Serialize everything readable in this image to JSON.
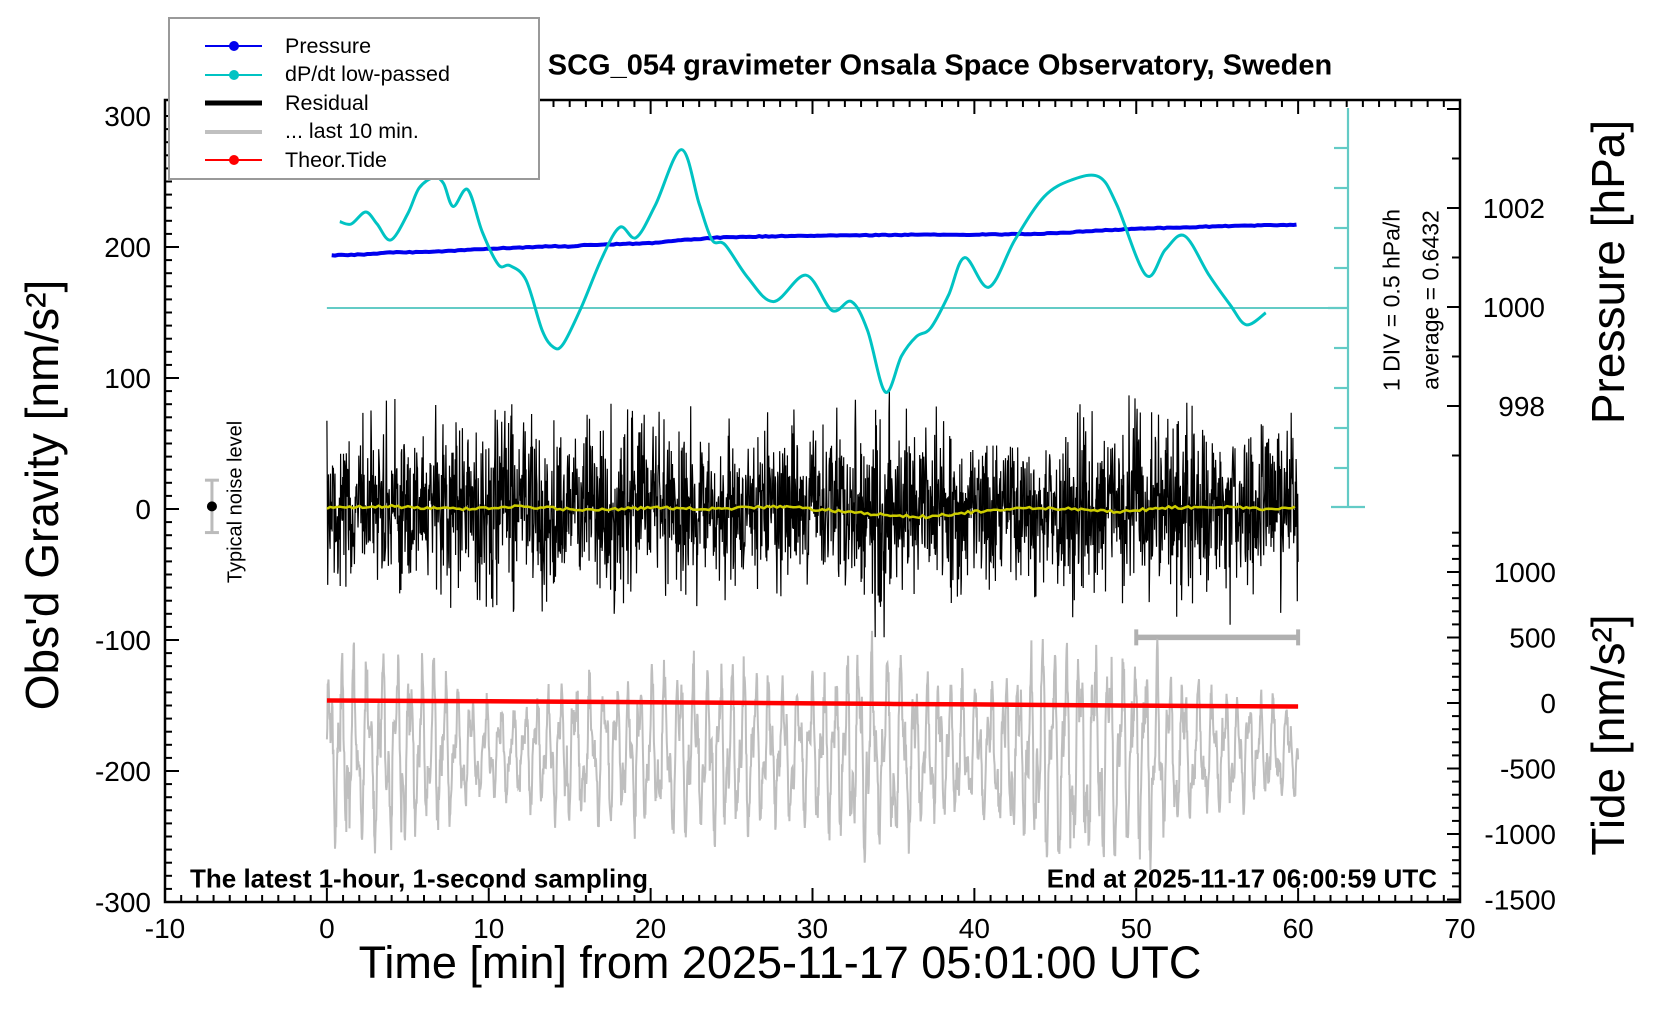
{
  "header": {
    "title": "SCG_054 gravimeter Onsala Space Observatory, Sweden"
  },
  "axes": {
    "x": {
      "label": "Time [min] from 2025-11-17 05:01:00 UTC",
      "min": -10,
      "max": 70,
      "major_ticks": [
        -10,
        0,
        10,
        20,
        30,
        40,
        50,
        60,
        70
      ],
      "minor_step": 1
    },
    "gravity": {
      "label": "Obs'd Gravity [nm/s²]",
      "major_ticks": [
        300,
        200,
        100,
        0,
        -100,
        -200,
        -300
      ],
      "minor_step": 10
    },
    "pressure": {
      "label": "Pressure [hPa]",
      "labeled_ticks": [
        1002,
        1000,
        998
      ],
      "minor_step": 1,
      "minor_range": [
        997,
        1004
      ]
    },
    "tide": {
      "label": "Tide [nm/s²]",
      "labeled_ticks": [
        1000,
        500,
        0,
        -500,
        -1000,
        -1500
      ],
      "minor_step": 100,
      "minor_range": [
        -1500,
        1300
      ]
    }
  },
  "annotations": {
    "scalebar_div": "1 DIV = 0.5 hPa/h",
    "scalebar_avg": "average = 0.6432",
    "noise_label": "Typical noise level",
    "bottom_left": "The latest 1-hour, 1-second sampling",
    "bottom_right": "End at 2025-11-17 06:00:59 UTC"
  },
  "legend": {
    "items": [
      {
        "label": "Pressure",
        "color": "#0000EE",
        "line_width": 2,
        "dot": true
      },
      {
        "label": "dP/dt low-passed",
        "color": "#00C3C3",
        "line_width": 2,
        "dot": true
      },
      {
        "label": "Residual",
        "color": "#000000",
        "line_width": 5,
        "dot": false
      },
      {
        "label": "... last 10 min.",
        "color": "#C0C0C0",
        "line_width": 4,
        "dot": false
      },
      {
        "label": "Theor.Tide",
        "color": "#FF0000",
        "line_width": 2,
        "dot": true
      }
    ]
  },
  "colors": {
    "pressure": "#0000EE",
    "dpdt": "#00C3C3",
    "dpdt_guides": "#63CBC6",
    "residual": "#000000",
    "residual_lp": "#CCCC00",
    "last10": "#BEBEBE",
    "bracket": "#B0B0B0",
    "tide": "#FF0000",
    "noise_bar": "#BBBBBB"
  },
  "chart_data": {
    "type": "line",
    "x_unit": "min",
    "title": "SCG_054 gravimeter Onsala Space Observatory, Sweden",
    "series": [
      {
        "name": "Pressure",
        "axis": "pressure",
        "unit": "hPa",
        "color": "#0000EE",
        "points": [
          [
            0,
            1001.04
          ],
          [
            2,
            1001.06
          ],
          [
            4,
            1001.1
          ],
          [
            6,
            1001.11
          ],
          [
            8,
            1001.14
          ],
          [
            10,
            1001.18
          ],
          [
            12,
            1001.2
          ],
          [
            14,
            1001.23
          ],
          [
            15,
            1001.22
          ],
          [
            16,
            1001.25
          ],
          [
            18,
            1001.27
          ],
          [
            20,
            1001.29
          ],
          [
            22,
            1001.35
          ],
          [
            24,
            1001.4
          ],
          [
            26,
            1001.42
          ],
          [
            28,
            1001.43
          ],
          [
            30,
            1001.44
          ],
          [
            32,
            1001.45
          ],
          [
            34,
            1001.45
          ],
          [
            36,
            1001.46
          ],
          [
            38,
            1001.46
          ],
          [
            40,
            1001.46
          ],
          [
            42,
            1001.47
          ],
          [
            44,
            1001.48
          ],
          [
            46,
            1001.51
          ],
          [
            48,
            1001.55
          ],
          [
            50,
            1001.58
          ],
          [
            52,
            1001.6
          ],
          [
            54,
            1001.62
          ],
          [
            56,
            1001.64
          ],
          [
            58,
            1001.65
          ],
          [
            60,
            1001.66
          ]
        ]
      },
      {
        "name": "dP/dt low-passed",
        "axis": "dpdt",
        "unit": "hPa/h",
        "color": "#00C3C3",
        "points": [
          [
            0.8,
            1.08
          ],
          [
            1.5,
            1.05
          ],
          [
            2.4,
            1.2
          ],
          [
            3.1,
            1.05
          ],
          [
            3.95,
            0.85
          ],
          [
            5.0,
            1.18
          ],
          [
            5.7,
            1.5
          ],
          [
            6.6,
            1.63
          ],
          [
            7.2,
            1.56
          ],
          [
            7.8,
            1.27
          ],
          [
            8.7,
            1.48
          ],
          [
            9.6,
            0.95
          ],
          [
            10.6,
            0.54
          ],
          [
            11.3,
            0.53
          ],
          [
            12.3,
            0.35
          ],
          [
            13.3,
            -0.28
          ],
          [
            14.0,
            -0.49
          ],
          [
            14.6,
            -0.45
          ],
          [
            15.7,
            0.0
          ],
          [
            17.0,
            0.63
          ],
          [
            18.1,
            1.01
          ],
          [
            19.1,
            0.88
          ],
          [
            20.3,
            1.29
          ],
          [
            21.9,
            1.98
          ],
          [
            23.0,
            1.3
          ],
          [
            23.8,
            0.85
          ],
          [
            24.6,
            0.79
          ],
          [
            26.0,
            0.38
          ],
          [
            27.6,
            0.08
          ],
          [
            29.6,
            0.41
          ],
          [
            31.2,
            -0.03
          ],
          [
            32.4,
            0.08
          ],
          [
            33.4,
            -0.28
          ],
          [
            34.5,
            -1.05
          ],
          [
            35.5,
            -0.6
          ],
          [
            36.4,
            -0.36
          ],
          [
            37.3,
            -0.25
          ],
          [
            38.4,
            0.16
          ],
          [
            39.4,
            0.63
          ],
          [
            40.9,
            0.26
          ],
          [
            42.5,
            0.85
          ],
          [
            44.3,
            1.39
          ],
          [
            46.0,
            1.6
          ],
          [
            47.7,
            1.64
          ],
          [
            48.8,
            1.29
          ],
          [
            50.6,
            0.41
          ],
          [
            51.8,
            0.73
          ],
          [
            53.0,
            0.9
          ],
          [
            54.5,
            0.41
          ],
          [
            55.8,
            0.04
          ],
          [
            56.8,
            -0.21
          ],
          [
            58.0,
            -0.06
          ]
        ]
      },
      {
        "name": "Residual",
        "axis": "gravity",
        "unit": "nm/s2",
        "color": "#000000",
        "mean": 0,
        "sampling": "1 s",
        "envelope_per_min": [
          70,
          75,
          72,
          78,
          85,
          80,
          72,
          85,
          80,
          76,
          84,
          90,
          75,
          95,
          86,
          72,
          80,
          90,
          84,
          75,
          70,
          78,
          86,
          72,
          66,
          72,
          82,
          75,
          70,
          77,
          72,
          80,
          86,
          82,
          100,
          95,
          84,
          75,
          80,
          84,
          77,
          72,
          82,
          75,
          70,
          77,
          84,
          80,
          75,
          90,
          84,
          80,
          86,
          82,
          75,
          80,
          92,
          88,
          95,
          78,
          70
        ]
      },
      {
        "name": "Residual low-passed",
        "axis": "gravity",
        "unit": "nm/s2",
        "color": "#CCCC00",
        "points": [
          [
            0,
            1
          ],
          [
            4,
            2
          ],
          [
            8,
            0
          ],
          [
            12,
            2
          ],
          [
            16,
            -1
          ],
          [
            20,
            1
          ],
          [
            24,
            0
          ],
          [
            28,
            2
          ],
          [
            31,
            -1
          ],
          [
            34,
            -4
          ],
          [
            37,
            -6
          ],
          [
            40,
            -2
          ],
          [
            43,
            1
          ],
          [
            46,
            0
          ],
          [
            49,
            -2
          ],
          [
            52,
            1
          ],
          [
            55,
            2
          ],
          [
            58,
            0
          ],
          [
            60,
            1
          ]
        ]
      },
      {
        "name": "... last 10 min.",
        "axis": "gravity",
        "unit": "nm/s2",
        "color": "#BEBEBE",
        "center": -185,
        "envelope_per_min": [
          80,
          85,
          80,
          75,
          80,
          75,
          70,
          70,
          60,
          45,
          40,
          40,
          38,
          50,
          55,
          60,
          55,
          60,
          55,
          60,
          65,
          70,
          75,
          70,
          75,
          70,
          75,
          60,
          55,
          60,
          60,
          70,
          80,
          85,
          80,
          85,
          75,
          60,
          55,
          60,
          55,
          60,
          70,
          75,
          90,
          95,
          90,
          95,
          90,
          85,
          80,
          92,
          70,
          60,
          55,
          50,
          50,
          45,
          45,
          42,
          40
        ]
      },
      {
        "name": "Theor.Tide",
        "axis": "tide",
        "unit": "nm/s2",
        "color": "#FF0000",
        "points": [
          [
            0,
            19
          ],
          [
            10,
            13
          ],
          [
            20,
            6
          ],
          [
            30,
            -3
          ],
          [
            40,
            -11
          ],
          [
            50,
            -20
          ],
          [
            60,
            -27
          ]
        ]
      }
    ],
    "scalebar": {
      "div_value": 0.5,
      "div_unit": "hPa/h",
      "divisions": 10,
      "average": 0.6432
    },
    "noise_marker": {
      "time_min": -7.1,
      "value": 2,
      "error": 20
    },
    "last10_bracket": {
      "from_min": 50,
      "to_min": 60,
      "level": -98
    }
  }
}
